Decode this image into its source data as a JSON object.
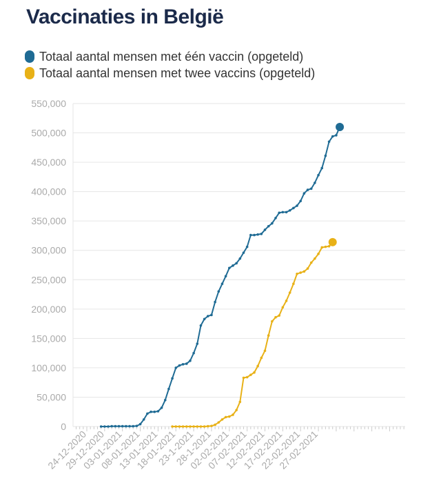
{
  "title": "Vaccinaties in België",
  "colors": {
    "first_dose": "#1f6b94",
    "second_dose": "#e8b117",
    "axis_text": "#aaaaaa",
    "grid": "#e6e6e6"
  },
  "legend": [
    {
      "label": "Totaal aantal mensen met één vaccin (opgeteld)",
      "color": "#1f6b94"
    },
    {
      "label": "Totaal aantal mensen met twee vaccins (opgeteld)",
      "color": "#e8b117"
    }
  ],
  "chart_data": {
    "type": "line",
    "title": "Vaccinaties in België",
    "xlabel": "",
    "ylabel": "",
    "ylim": [
      0,
      550000
    ],
    "y_ticks": [
      0,
      50000,
      100000,
      150000,
      200000,
      250000,
      300000,
      350000,
      400000,
      450000,
      500000,
      550000
    ],
    "y_tick_labels": [
      "0",
      "50,000",
      "100,000",
      "150,000",
      "200,000",
      "250,000",
      "300,000",
      "350,000",
      "400,000",
      "450,000",
      "500,000",
      "550,000"
    ],
    "x_tick_labels": [
      "24-12-2020",
      "29-12-2020",
      "03-01-2021",
      "08-01-2021",
      "13-01-2021",
      "18-01-2021",
      "23-1-2021",
      "28-1-2021",
      "02-02-2021",
      "07-02-2021",
      "12-02-2021",
      "17-02-2021",
      "22-02-2021",
      "27-02-2021"
    ],
    "grid": true,
    "legend_position": "top-left",
    "series": [
      {
        "name": "Totaal aantal mensen met één vaccin (opgeteld)",
        "color": "#1f6b94",
        "start_date": "2020-12-28",
        "values": [
          0,
          0,
          0,
          500,
          500,
          500,
          500,
          500,
          500,
          500,
          1000,
          4000,
          12000,
          22000,
          25000,
          25000,
          26000,
          32000,
          45000,
          64000,
          82000,
          100000,
          104000,
          106000,
          107000,
          112000,
          125000,
          141000,
          172000,
          183000,
          188000,
          190000,
          212000,
          230000,
          243000,
          256000,
          270000,
          274000,
          278000,
          286000,
          296000,
          306000,
          326000,
          326000,
          327000,
          328000,
          335000,
          341000,
          346000,
          355000,
          364000,
          365000,
          365000,
          368000,
          372000,
          376000,
          384000,
          397000,
          403000,
          405000,
          415000,
          428000,
          440000,
          461000,
          485000,
          494000,
          496000,
          510000
        ]
      },
      {
        "name": "Totaal aantal mensen met twee vaccins (opgeteld)",
        "color": "#e8b117",
        "start_date": "2021-01-17",
        "values": [
          0,
          0,
          0,
          0,
          0,
          0,
          0,
          0,
          0,
          0,
          500,
          1000,
          3000,
          7000,
          12000,
          16000,
          17000,
          20000,
          28000,
          42000,
          83000,
          84000,
          88000,
          92000,
          103000,
          117000,
          129000,
          155000,
          179000,
          186000,
          189000,
          203000,
          214000,
          228000,
          243000,
          260000,
          262000,
          264000,
          269000,
          279000,
          286000,
          294000,
          305000,
          306000,
          307000,
          314000
        ]
      }
    ]
  }
}
